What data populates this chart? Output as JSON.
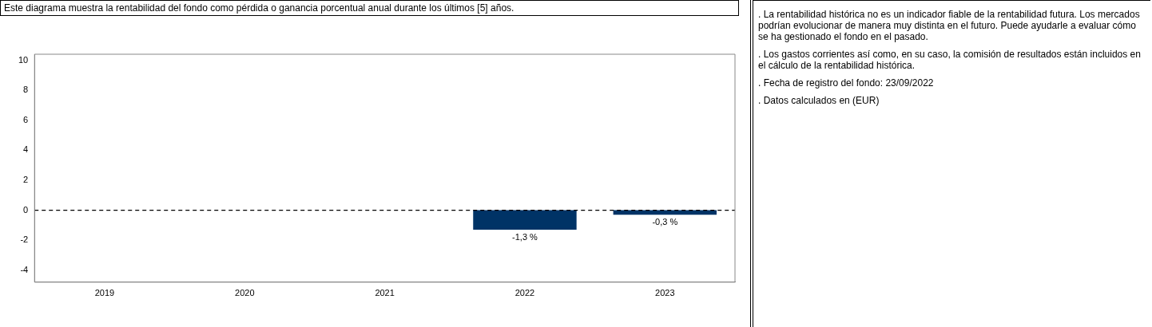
{
  "chart_data": {
    "type": "bar",
    "title": "Este diagrama muestra la rentabilidad del fondo como pérdida o ganancia porcentual anual durante los últimos [5] años.",
    "categories": [
      "2019",
      "2020",
      "2021",
      "2022",
      "2023"
    ],
    "values": [
      null,
      null,
      null,
      -1.3,
      -0.3
    ],
    "color": "#003366",
    "value_labels": [
      null,
      null,
      null,
      "-1,3 %",
      "-0,3 %"
    ],
    "ylim": [
      -4.8,
      10.4
    ],
    "yticks": [
      -4,
      -2,
      0,
      2,
      4,
      6,
      8,
      10
    ],
    "grid": false,
    "ref_lines": [
      {
        "axis": "y",
        "value": 0,
        "line_style": "dashed",
        "color": "#000000"
      }
    ],
    "annotations": [
      ". La rentabilidad histórica no es un indicador fiable de la rentabilidad futura. Los mercados podrían evolucionar de manera muy distinta en el futuro. Puede ayudarle a evaluar cómo se ha gestionado el fondo en el pasado.",
      ". Los gastos corrientes así como, en su caso, la comisión de resultados están incluidos en el cálculo de la rentabilidad histórica.",
      ". Fecha de registro del fondo: 23/09/2022",
      ". Datos calculados en (EUR)"
    ]
  }
}
